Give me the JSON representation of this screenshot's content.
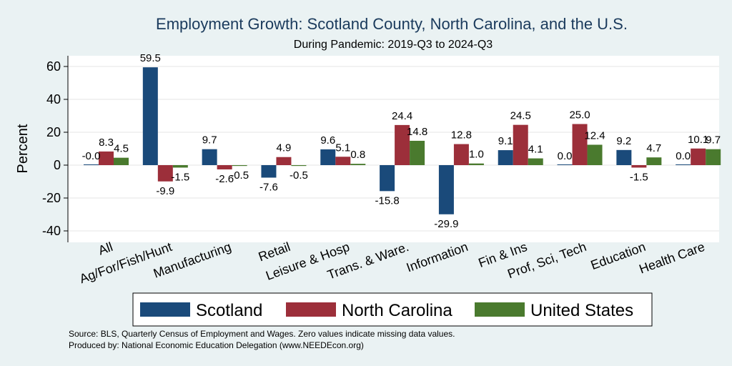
{
  "chart_data": {
    "type": "bar",
    "title": "Employment Growth: Scotland County, North Carolina, and the U.S.",
    "subtitle": "During Pandemic: 2019-Q3 to 2024-Q3",
    "ylabel": "Percent",
    "xlabel": "",
    "ylim": [
      -46,
      66
    ],
    "yticks": [
      60,
      40,
      20,
      0,
      -20,
      -40
    ],
    "ytick_labels": [
      "60",
      "40",
      "20",
      "0",
      "-20",
      "-40"
    ],
    "grid": true,
    "categories": [
      "All",
      "Ag/For/Fish/Hunt",
      "Manufacturing",
      "Retail",
      "Leisure & Hosp",
      "Trans. & Ware.",
      "Information",
      "Fin & Ins",
      "Prof, Sci, Tech",
      "Education",
      "Health Care"
    ],
    "series": [
      {
        "name": "Scotland",
        "color": "#1a4a7a",
        "values": [
          -0.0,
          59.5,
          9.7,
          -7.6,
          9.6,
          -15.8,
          -29.9,
          9.1,
          0.0,
          9.2,
          0.0
        ],
        "labels": [
          "-0.0",
          "59.5",
          "9.7",
          "-7.6",
          "9.6",
          "-15.8",
          "-29.9",
          "9.1",
          "0.0",
          "9.2",
          "0.0"
        ]
      },
      {
        "name": "North Carolina",
        "color": "#9c2f3a",
        "values": [
          8.3,
          -9.9,
          -2.6,
          4.9,
          5.1,
          24.4,
          12.8,
          24.5,
          25.0,
          -1.5,
          10.1
        ],
        "labels": [
          "8.3",
          "-9.9",
          "-2.6",
          "4.9",
          "5.1",
          "24.4",
          "12.8",
          "24.5",
          "25.0",
          "-1.5",
          "10.1"
        ]
      },
      {
        "name": "United States",
        "color": "#4a7a2e",
        "values": [
          4.5,
          -1.5,
          -0.5,
          -0.5,
          0.8,
          14.8,
          1.0,
          4.1,
          12.4,
          4.7,
          9.7
        ],
        "labels": [
          "4.5",
          "-1.5",
          "-0.5",
          "-0.5",
          "0.8",
          "14.8",
          "1.0",
          "4.1",
          "12.4",
          "4.7",
          "9.7"
        ]
      }
    ],
    "legend_position": "bottom",
    "notes": [
      "Source: BLS, Quarterly Census of Employment and Wages. Zero values indicate missing data values.",
      "Produced by: National Economic Education Delegation (www.NEEDEcon.org)"
    ]
  }
}
